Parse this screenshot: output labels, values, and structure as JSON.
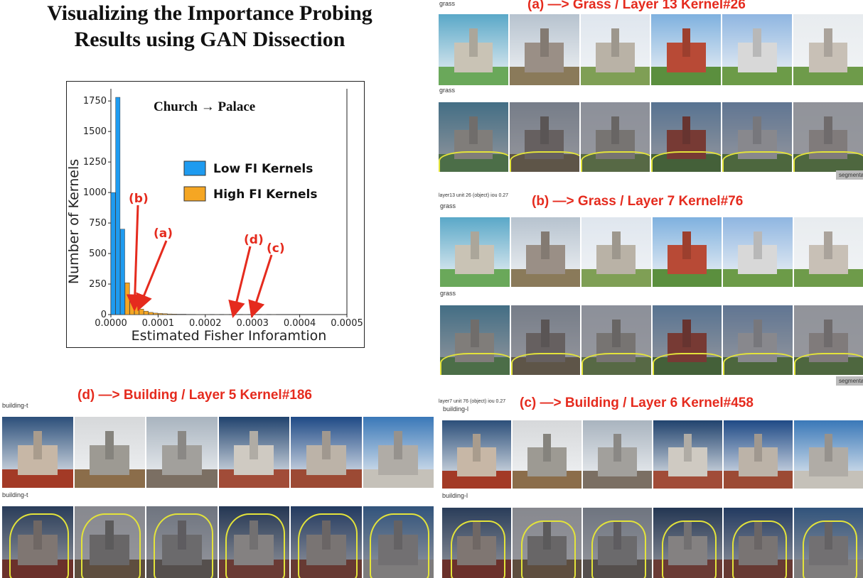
{
  "title": "Visualizing the Importance Probing Results using GAN Dissection",
  "chart_data": {
    "type": "bar",
    "annotation_title": "Church → Palace",
    "xlabel": "Estimated Fisher Inforamtion",
    "ylabel": "Number of Kernels",
    "xlim": [
      0,
      0.0005
    ],
    "ylim": [
      0,
      1850
    ],
    "xticks": [
      "0.0000",
      "0.0001",
      "0.0002",
      "0.0003",
      "0.0004",
      "0.0005"
    ],
    "yticks": [
      "0",
      "250",
      "500",
      "750",
      "1000",
      "1250",
      "1500",
      "1750"
    ],
    "bin_width": 1e-05,
    "series": [
      {
        "name": "Low FI Kernels",
        "color": "#1e9bf0",
        "bins": [
          0.0,
          1e-05,
          2e-05,
          3e-05
        ],
        "values": [
          1000,
          1780,
          700,
          260
        ]
      },
      {
        "name": "High FI Kernels",
        "color": "#f5a623",
        "bins": [
          3e-05,
          4e-05,
          5e-05,
          6e-05,
          7e-05,
          8e-05,
          9e-05,
          0.0001,
          0.00011,
          0.00012,
          0.00013,
          0.00014,
          0.00015,
          0.00016,
          0.00017,
          0.00018,
          0.00019,
          0.0002,
          0.00022,
          0.00024,
          0.00026,
          0.00028,
          0.0003,
          0.00032,
          0.00034
        ],
        "values": [
          260,
          160,
          90,
          45,
          28,
          18,
          12,
          9,
          7,
          5,
          4,
          3,
          3,
          2,
          2,
          1,
          1,
          1,
          1,
          1,
          1,
          1,
          1,
          1,
          1
        ]
      }
    ],
    "arrows": [
      {
        "label": "(b)",
        "x": 5e-05,
        "y": 60
      },
      {
        "label": "(a)",
        "x": 6e-05,
        "y": 60
      },
      {
        "label": "(d)",
        "x": 0.00026,
        "y": 5
      },
      {
        "label": "(c)",
        "x": 0.0003,
        "y": 5
      }
    ],
    "legend_position": "middle-right",
    "grid": false
  },
  "panels": {
    "a": {
      "title": "(a) —> Grass / Layer 13 Kernel#26",
      "top_label": "grass",
      "mid_label": "grass",
      "tag": "segmentation"
    },
    "b": {
      "title": "(b) —> Grass / Layer 7 Kernel#76",
      "header_small": "layer13 unit 26 (object) iou 0.27",
      "top_label": "grass",
      "mid_label": "grass",
      "tag": "segmentation"
    },
    "c": {
      "title": "(c) —> Building / Layer 6 Kernel#458",
      "header_small": "layer7 unit 76 (object) iou 0.27",
      "top_label": "building-l",
      "mid_label": "building-l"
    },
    "d": {
      "title": "(d) —> Building / Layer 5 Kernel#186",
      "top_label": "building-t",
      "mid_label": "building-t"
    }
  },
  "colors": {
    "accent_red": "#e52b1e",
    "low_fi": "#1e9bf0",
    "high_fi": "#f5a623",
    "seg_yellow": "#e3e33a"
  }
}
